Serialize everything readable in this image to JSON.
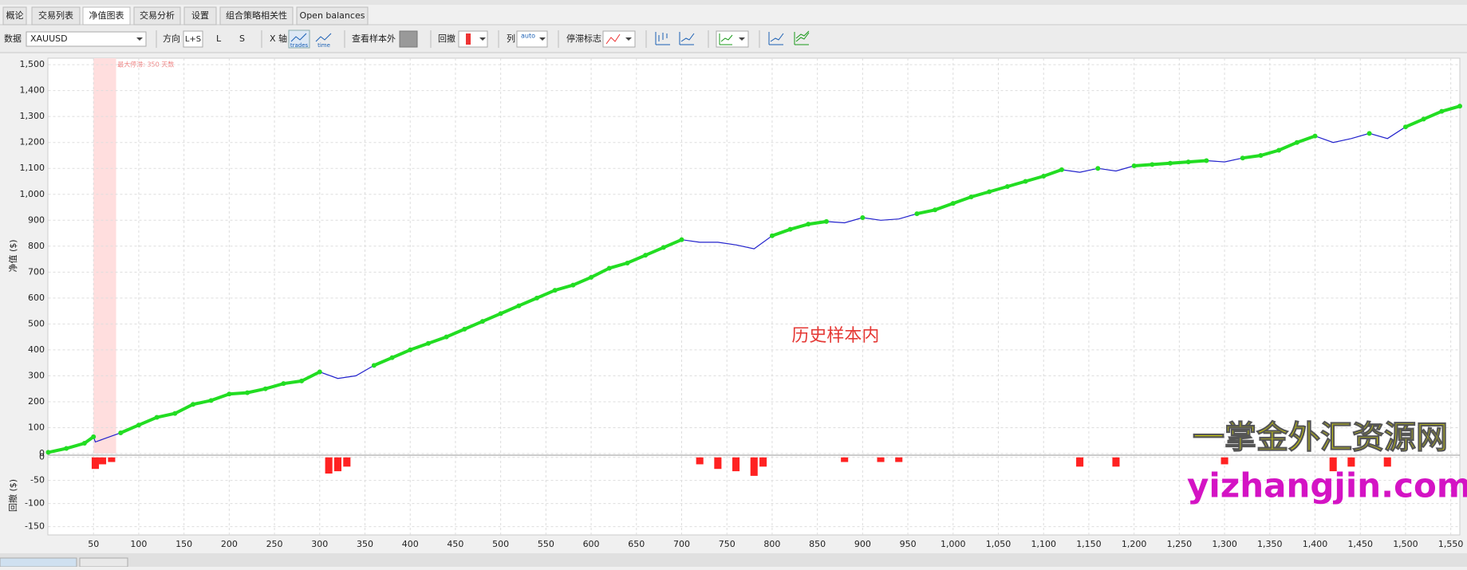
{
  "tabs": {
    "labels": [
      "概论",
      "交易列表",
      "净值图表",
      "交易分析",
      "设置",
      "组合策略相关性",
      "Open balances"
    ],
    "active": 2
  },
  "toolbar": {
    "data_label": "数据",
    "symbol": "XAUUSD",
    "direction_label": "方向",
    "direction_ls": "L+S",
    "direction_l": "L",
    "direction_s": "S",
    "x_axis_label": "X 轴",
    "x_trades": "trades",
    "x_time": "time",
    "out_of_sample_label": "查看样本外",
    "drawdown_label": "回撤",
    "columns_label": "列",
    "columns_auto": "auto",
    "stagnation_label": "停滞标志"
  },
  "watermark": {
    "title": "一掌金外汇资源网",
    "url": "yizhangjin.com"
  },
  "chart_data": [
    {
      "type": "line",
      "ylabel": "净值 ($)",
      "annotation": "历史样本内",
      "color": "#2222cc",
      "highlight_color": "#22dd22",
      "grid": true,
      "stagnation": {
        "start": 50,
        "end": 75,
        "label": "最大停滞: 350 天数"
      },
      "xlim": [
        0,
        1560
      ],
      "ylim": [
        0,
        1525
      ],
      "yticks": [
        0,
        100,
        200,
        300,
        400,
        500,
        600,
        700,
        800,
        900,
        {
          "value": 1000,
          "label": "1,000"
        },
        {
          "value": 1100,
          "label": "1,100"
        },
        {
          "value": 1200,
          "label": "1,200"
        },
        {
          "value": 1300,
          "label": "1,300"
        },
        {
          "value": 1400,
          "label": "1,400"
        },
        {
          "value": 1500,
          "label": "1,500"
        }
      ],
      "x": [
        0,
        20,
        40,
        50,
        52,
        60,
        80,
        100,
        120,
        140,
        160,
        180,
        200,
        220,
        240,
        260,
        280,
        300,
        320,
        340,
        360,
        380,
        400,
        420,
        440,
        460,
        480,
        500,
        520,
        540,
        560,
        580,
        600,
        620,
        640,
        660,
        680,
        700,
        720,
        740,
        760,
        780,
        800,
        820,
        840,
        860,
        880,
        900,
        920,
        940,
        960,
        980,
        1000,
        1020,
        1040,
        1060,
        1080,
        1100,
        1120,
        1140,
        1160,
        1180,
        1200,
        1220,
        1240,
        1260,
        1280,
        1300,
        1320,
        1340,
        1360,
        1380,
        1400,
        1420,
        1440,
        1460,
        1480,
        1500,
        1520,
        1540,
        1560
      ],
      "values": [
        5,
        20,
        40,
        65,
        45,
        55,
        80,
        110,
        140,
        155,
        190,
        205,
        230,
        235,
        250,
        270,
        280,
        315,
        290,
        300,
        340,
        370,
        400,
        425,
        450,
        480,
        510,
        540,
        570,
        600,
        630,
        650,
        680,
        715,
        735,
        765,
        795,
        825,
        815,
        815,
        805,
        790,
        840,
        865,
        885,
        895,
        890,
        910,
        900,
        905,
        925,
        940,
        965,
        990,
        1010,
        1030,
        1050,
        1070,
        1095,
        1085,
        1100,
        1090,
        1110,
        1115,
        1120,
        1125,
        1130,
        1125,
        1140,
        1150,
        1170,
        1200,
        1225,
        1200,
        1215,
        1235,
        1215,
        1260,
        1290,
        1320,
        1340
      ],
      "new_highs": [
        5,
        20,
        40,
        65,
        null,
        null,
        80,
        110,
        140,
        155,
        190,
        205,
        230,
        235,
        250,
        270,
        280,
        315,
        null,
        null,
        340,
        370,
        400,
        425,
        450,
        480,
        510,
        540,
        570,
        600,
        630,
        650,
        680,
        715,
        735,
        765,
        795,
        825,
        null,
        null,
        null,
        null,
        840,
        865,
        885,
        895,
        null,
        910,
        null,
        null,
        925,
        940,
        965,
        990,
        1010,
        1030,
        1050,
        1070,
        1095,
        null,
        1100,
        null,
        1110,
        1115,
        1120,
        1125,
        1130,
        null,
        1140,
        1150,
        1170,
        1200,
        1225,
        null,
        null,
        1235,
        null,
        1260,
        1290,
        1320,
        1340
      ]
    },
    {
      "type": "bar",
      "ylabel": "回撤 ($)",
      "color": "#ff2222",
      "grid": true,
      "xlim": [
        0,
        1560
      ],
      "ylim": [
        -168,
        3
      ],
      "yticks": [
        0,
        -50,
        -100,
        -150
      ],
      "xticks": [
        50,
        100,
        150,
        200,
        250,
        300,
        350,
        400,
        450,
        500,
        550,
        600,
        650,
        700,
        750,
        800,
        850,
        900,
        950,
        {
          "value": 1000,
          "label": "1,000"
        },
        {
          "value": 1050,
          "label": "1,050"
        },
        {
          "value": 1100,
          "label": "1,100"
        },
        {
          "value": 1150,
          "label": "1,150"
        },
        {
          "value": 1200,
          "label": "1,200"
        },
        {
          "value": 1250,
          "label": "1,250"
        },
        {
          "value": 1300,
          "label": "1,300"
        },
        {
          "value": 1350,
          "label": "1,350"
        },
        {
          "value": 1400,
          "label": "1,400"
        },
        {
          "value": 1450,
          "label": "1,450"
        },
        {
          "value": 1500,
          "label": "1,500"
        },
        {
          "value": 1550,
          "label": "1,550"
        }
      ],
      "x": [
        52,
        60,
        70,
        310,
        320,
        330,
        720,
        740,
        760,
        780,
        790,
        880,
        920,
        940,
        1140,
        1180,
        1300,
        1420,
        1440,
        1480
      ],
      "values": [
        -25,
        -15,
        -10,
        -35,
        -30,
        -20,
        -15,
        -25,
        -30,
        -40,
        -20,
        -10,
        -10,
        -10,
        -20,
        -20,
        -15,
        -30,
        -20,
        -20
      ]
    }
  ]
}
